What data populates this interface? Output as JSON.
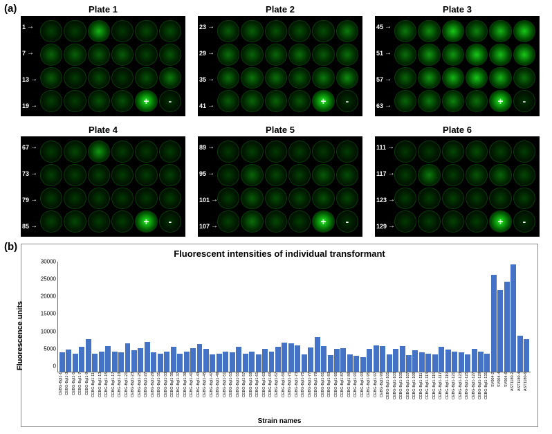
{
  "panel_a": {
    "label": "(a)",
    "plates": [
      {
        "title": "Plate 1",
        "rows": [
          "1",
          "7",
          "13",
          "19"
        ],
        "wells": [
          [
            0.12,
            0.1,
            0.7,
            0.08,
            0.15,
            0.18
          ],
          [
            0.3,
            0.28,
            0.25,
            0.25,
            0.12,
            0.22
          ],
          [
            0.25,
            0.1,
            0.18,
            0.08,
            0.2,
            0.4
          ],
          [
            0.12,
            0.1,
            0.2,
            0.2,
            1.0,
            0.05
          ]
        ],
        "ctrl_pos": [
          3,
          4
        ],
        "ctrl_neg": [
          3,
          5
        ]
      },
      {
        "title": "Plate 2",
        "rows": [
          "23",
          "29",
          "35",
          "41"
        ],
        "wells": [
          [
            0.25,
            0.28,
            0.2,
            0.2,
            0.18,
            0.4
          ],
          [
            0.35,
            0.3,
            0.3,
            0.35,
            0.25,
            0.35
          ],
          [
            0.35,
            0.38,
            0.35,
            0.28,
            0.4,
            0.5
          ],
          [
            0.25,
            0.3,
            0.28,
            0.22,
            1.0,
            0.05
          ]
        ],
        "ctrl_pos": [
          3,
          4
        ],
        "ctrl_neg": [
          3,
          5
        ]
      },
      {
        "title": "Plate 3",
        "rows": [
          "45",
          "51",
          "57",
          "63"
        ],
        "wells": [
          [
            0.4,
            0.5,
            0.8,
            0.45,
            0.7,
            0.8
          ],
          [
            0.35,
            0.55,
            0.55,
            0.8,
            0.75,
            0.8
          ],
          [
            0.3,
            0.55,
            0.7,
            0.8,
            0.7,
            0.35
          ],
          [
            0.3,
            0.4,
            0.45,
            0.35,
            1.0,
            0.05
          ]
        ],
        "ctrl_pos": [
          3,
          4
        ],
        "ctrl_neg": [
          3,
          5
        ]
      },
      {
        "title": "Plate 4",
        "rows": [
          "67",
          "73",
          "79",
          "85"
        ],
        "wells": [
          [
            0.1,
            0.15,
            0.55,
            0.1,
            0.08,
            0.1
          ],
          [
            0.12,
            0.1,
            0.12,
            0.1,
            0.1,
            0.12
          ],
          [
            0.1,
            0.08,
            0.1,
            0.08,
            0.08,
            0.1
          ],
          [
            0.12,
            0.15,
            0.1,
            0.1,
            1.0,
            0.05
          ]
        ],
        "ctrl_pos": [
          3,
          4
        ],
        "ctrl_neg": [
          3,
          5
        ]
      },
      {
        "title": "Plate 5",
        "rows": [
          "89",
          "95",
          "101",
          "107"
        ],
        "wells": [
          [
            0.08,
            0.12,
            0.08,
            0.1,
            0.08,
            0.1
          ],
          [
            0.1,
            0.3,
            0.15,
            0.12,
            0.25,
            0.18
          ],
          [
            0.1,
            0.25,
            0.18,
            0.15,
            0.2,
            0.15
          ],
          [
            0.12,
            0.35,
            0.15,
            0.1,
            1.0,
            0.05
          ]
        ],
        "ctrl_pos": [
          3,
          4
        ],
        "ctrl_neg": [
          3,
          5
        ]
      },
      {
        "title": "Plate 6",
        "rows": [
          "111",
          "117",
          "123",
          "129"
        ],
        "wells": [
          [
            0.08,
            0.08,
            0.15,
            0.18,
            0.12,
            0.1
          ],
          [
            0.1,
            0.4,
            0.1,
            0.22,
            0.3,
            0.15
          ],
          [
            0.1,
            0.1,
            0.12,
            0.1,
            0.12,
            0.12
          ],
          [
            0.08,
            0.1,
            0.12,
            0.1,
            1.0,
            0.05
          ]
        ],
        "ctrl_pos": [
          3,
          4
        ],
        "ctrl_neg": [
          3,
          5
        ]
      }
    ]
  },
  "panel_b": {
    "label": "(b)",
    "chart": {
      "type": "bar",
      "title": "Fluorescent intensities of individual transformant",
      "ylabel": "Fluorescence units",
      "xlabel": "Strain names",
      "ylim": [
        0,
        30000
      ],
      "ytick_step": 5000,
      "bar_color": "#4472c4",
      "background_color": "#ffffff",
      "categories": [
        "CEBG-Bgl1-1",
        "CEBG-Bgl1-3",
        "CEBG-Bgl1-5",
        "CEBG-Bgl1-7",
        "CEBG-Bgl1-9",
        "CEBG-Bgl1-11",
        "CEBG-Bgl1-13",
        "CEBG-Bgl1-15",
        "CEBG-Bgl1-17",
        "CEBG-Bgl1-19",
        "CEBG-Bgl1-21",
        "CEBG-Bgl1-23",
        "CEBG-Bgl1-25",
        "CEBG-Bgl1-27",
        "CEBG-Bgl1-29",
        "CEBG-Bgl1-31",
        "CEBG-Bgl1-33",
        "CEBG-Bgl1-35",
        "CEBG-Bgl1-37",
        "CEBG-Bgl1-39",
        "CEBG-Bgl1-41",
        "CEBG-Bgl1-43",
        "CEBG-Bgl1-45",
        "CEBG-Bgl1-47",
        "CEBG-Bgl1-49",
        "CEBG-Bgl1-51",
        "CEBG-Bgl1-53",
        "CEBG-Bgl1-55",
        "CEBG-Bgl1-57",
        "CEBG-Bgl1-59",
        "CEBG-Bgl1-61",
        "CEBG-Bgl1-63",
        "CEBG-Bgl1-65",
        "CEBG-Bgl1-67",
        "CEBG-Bgl1-69",
        "CEBG-Bgl1-71",
        "CEBG-Bgl1-73",
        "CEBG-Bgl1-75",
        "CEBG-Bgl1-77",
        "CEBG-Bgl1-79",
        "CEBG-Bgl1-81",
        "CEBG-Bgl1-83",
        "CEBG-Bgl1-85",
        "CEBG-Bgl1-87",
        "CEBG-Bgl1-89",
        "CEBG-Bgl1-91",
        "CEBG-Bgl1-93",
        "CEBG-Bgl1-95",
        "CEBG-Bgl1-97",
        "CEBG-Bgl1-99",
        "CEBG-Bgl1-101",
        "CEBG-Bgl1-103",
        "CEBG-Bgl1-105",
        "CEBG-Bgl1-107",
        "CEBG-Bgl1-109",
        "CEBG-Bgl1-111",
        "CEBG-Bgl1-113",
        "CEBG-Bgl1-115",
        "CEBG-Bgl1-117",
        "CEBG-Bgl1-119",
        "CEBG-Bgl1-121",
        "CEBG-Bgl1-123",
        "CEBG-Bgl1-125",
        "CEBG-Bgl1-127",
        "CEBG-Bgl1-129",
        "CEBG-Bgl1-131",
        "SV004-2",
        "SV004-4",
        "SV004-6",
        "AST1180-2",
        "AST1180-4",
        "AST1180-6"
      ],
      "values": [
        5200,
        6000,
        5000,
        6800,
        8800,
        5000,
        5400,
        7000,
        5500,
        5200,
        7800,
        5800,
        6400,
        8200,
        5200,
        5000,
        5400,
        6800,
        5000,
        5500,
        6400,
        7600,
        6200,
        4800,
        5000,
        5400,
        5200,
        6800,
        5000,
        5400,
        4800,
        6200,
        5400,
        6800,
        8000,
        7800,
        7200,
        4800,
        6600,
        9400,
        6900,
        4600,
        6200,
        6400,
        4800,
        4400,
        4000,
        6200,
        7200,
        7000,
        4800,
        6200,
        7000,
        4600,
        5800,
        5200,
        5000,
        4800,
        6800,
        6000,
        5400,
        5200,
        4800,
        6200,
        5400,
        5000,
        26500,
        22200,
        24600,
        29200,
        9800,
        8800
      ]
    }
  }
}
